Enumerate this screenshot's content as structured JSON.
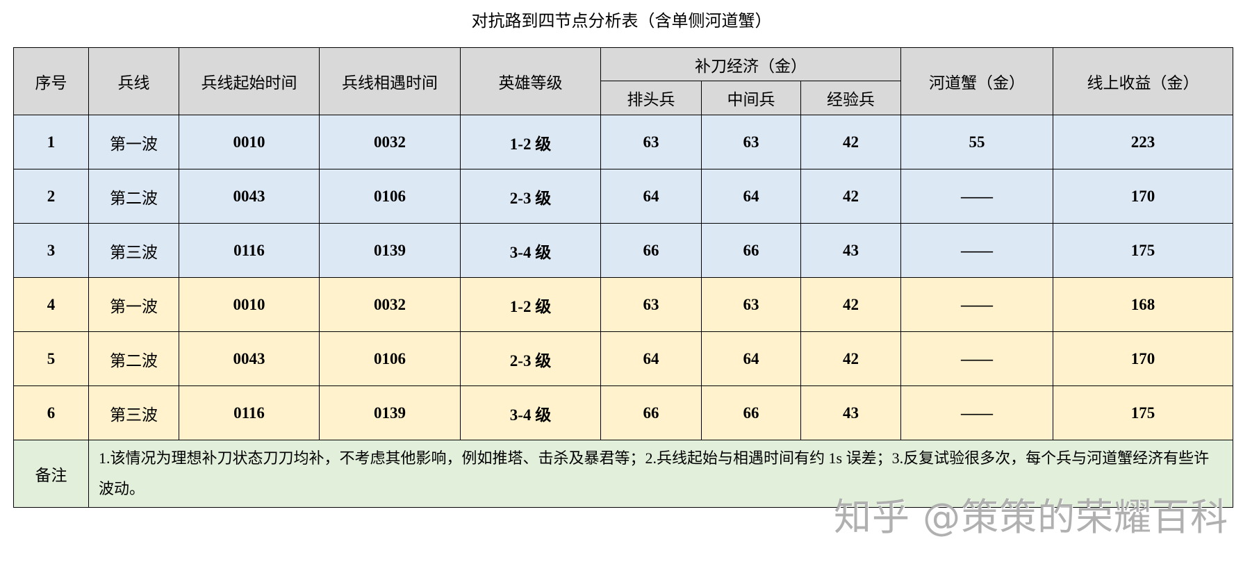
{
  "title": "对抗路到四节点分析表（含单侧河道蟹）",
  "headers": {
    "index": "序号",
    "wave": "兵线",
    "start_time": "兵线起始时间",
    "meet_time": "兵线相遇时间",
    "hero_level": "英雄等级",
    "last_hit_group": "补刀经济（金）",
    "front": "排头兵",
    "middle": "中间兵",
    "exp": "经验兵",
    "crab": "河道蟹（金）",
    "total": "线上收益（金）"
  },
  "rows": [
    {
      "index": "1",
      "wave": "第一波",
      "start": "0010",
      "meet": "0032",
      "level": "1-2 级",
      "front": "63",
      "middle": "63",
      "exp": "42",
      "crab": "55",
      "total": "223",
      "group": "blue"
    },
    {
      "index": "2",
      "wave": "第二波",
      "start": "0043",
      "meet": "0106",
      "level": "2-3 级",
      "front": "64",
      "middle": "64",
      "exp": "42",
      "crab": "——",
      "total": "170",
      "group": "blue"
    },
    {
      "index": "3",
      "wave": "第三波",
      "start": "0116",
      "meet": "0139",
      "level": "3-4 级",
      "front": "66",
      "middle": "66",
      "exp": "43",
      "crab": "——",
      "total": "175",
      "group": "blue"
    },
    {
      "index": "4",
      "wave": "第一波",
      "start": "0010",
      "meet": "0032",
      "level": "1-2 级",
      "front": "63",
      "middle": "63",
      "exp": "42",
      "crab": "——",
      "total": "168",
      "group": "yellow"
    },
    {
      "index": "5",
      "wave": "第二波",
      "start": "0043",
      "meet": "0106",
      "level": "2-3 级",
      "front": "64",
      "middle": "64",
      "exp": "42",
      "crab": "——",
      "total": "170",
      "group": "yellow"
    },
    {
      "index": "6",
      "wave": "第三波",
      "start": "0116",
      "meet": "0139",
      "level": "3-4 级",
      "front": "66",
      "middle": "66",
      "exp": "43",
      "crab": "——",
      "total": "175",
      "group": "yellow"
    }
  ],
  "note": {
    "label": "备注",
    "text": "1.该情况为理想补刀状态刀刀均补，不考虑其他影响，例如推塔、击杀及暴君等；2.兵线起始与相遇时间有约 1s 误差；3.反复试验很多次，每个兵与河道蟹经济有些许波动。"
  },
  "watermark": "知乎 @策策的荣耀百科",
  "colors": {
    "header": "#d9d9d9",
    "blue": "#dde8f5",
    "yellow": "#fff2cc",
    "note": "#e2efda"
  }
}
